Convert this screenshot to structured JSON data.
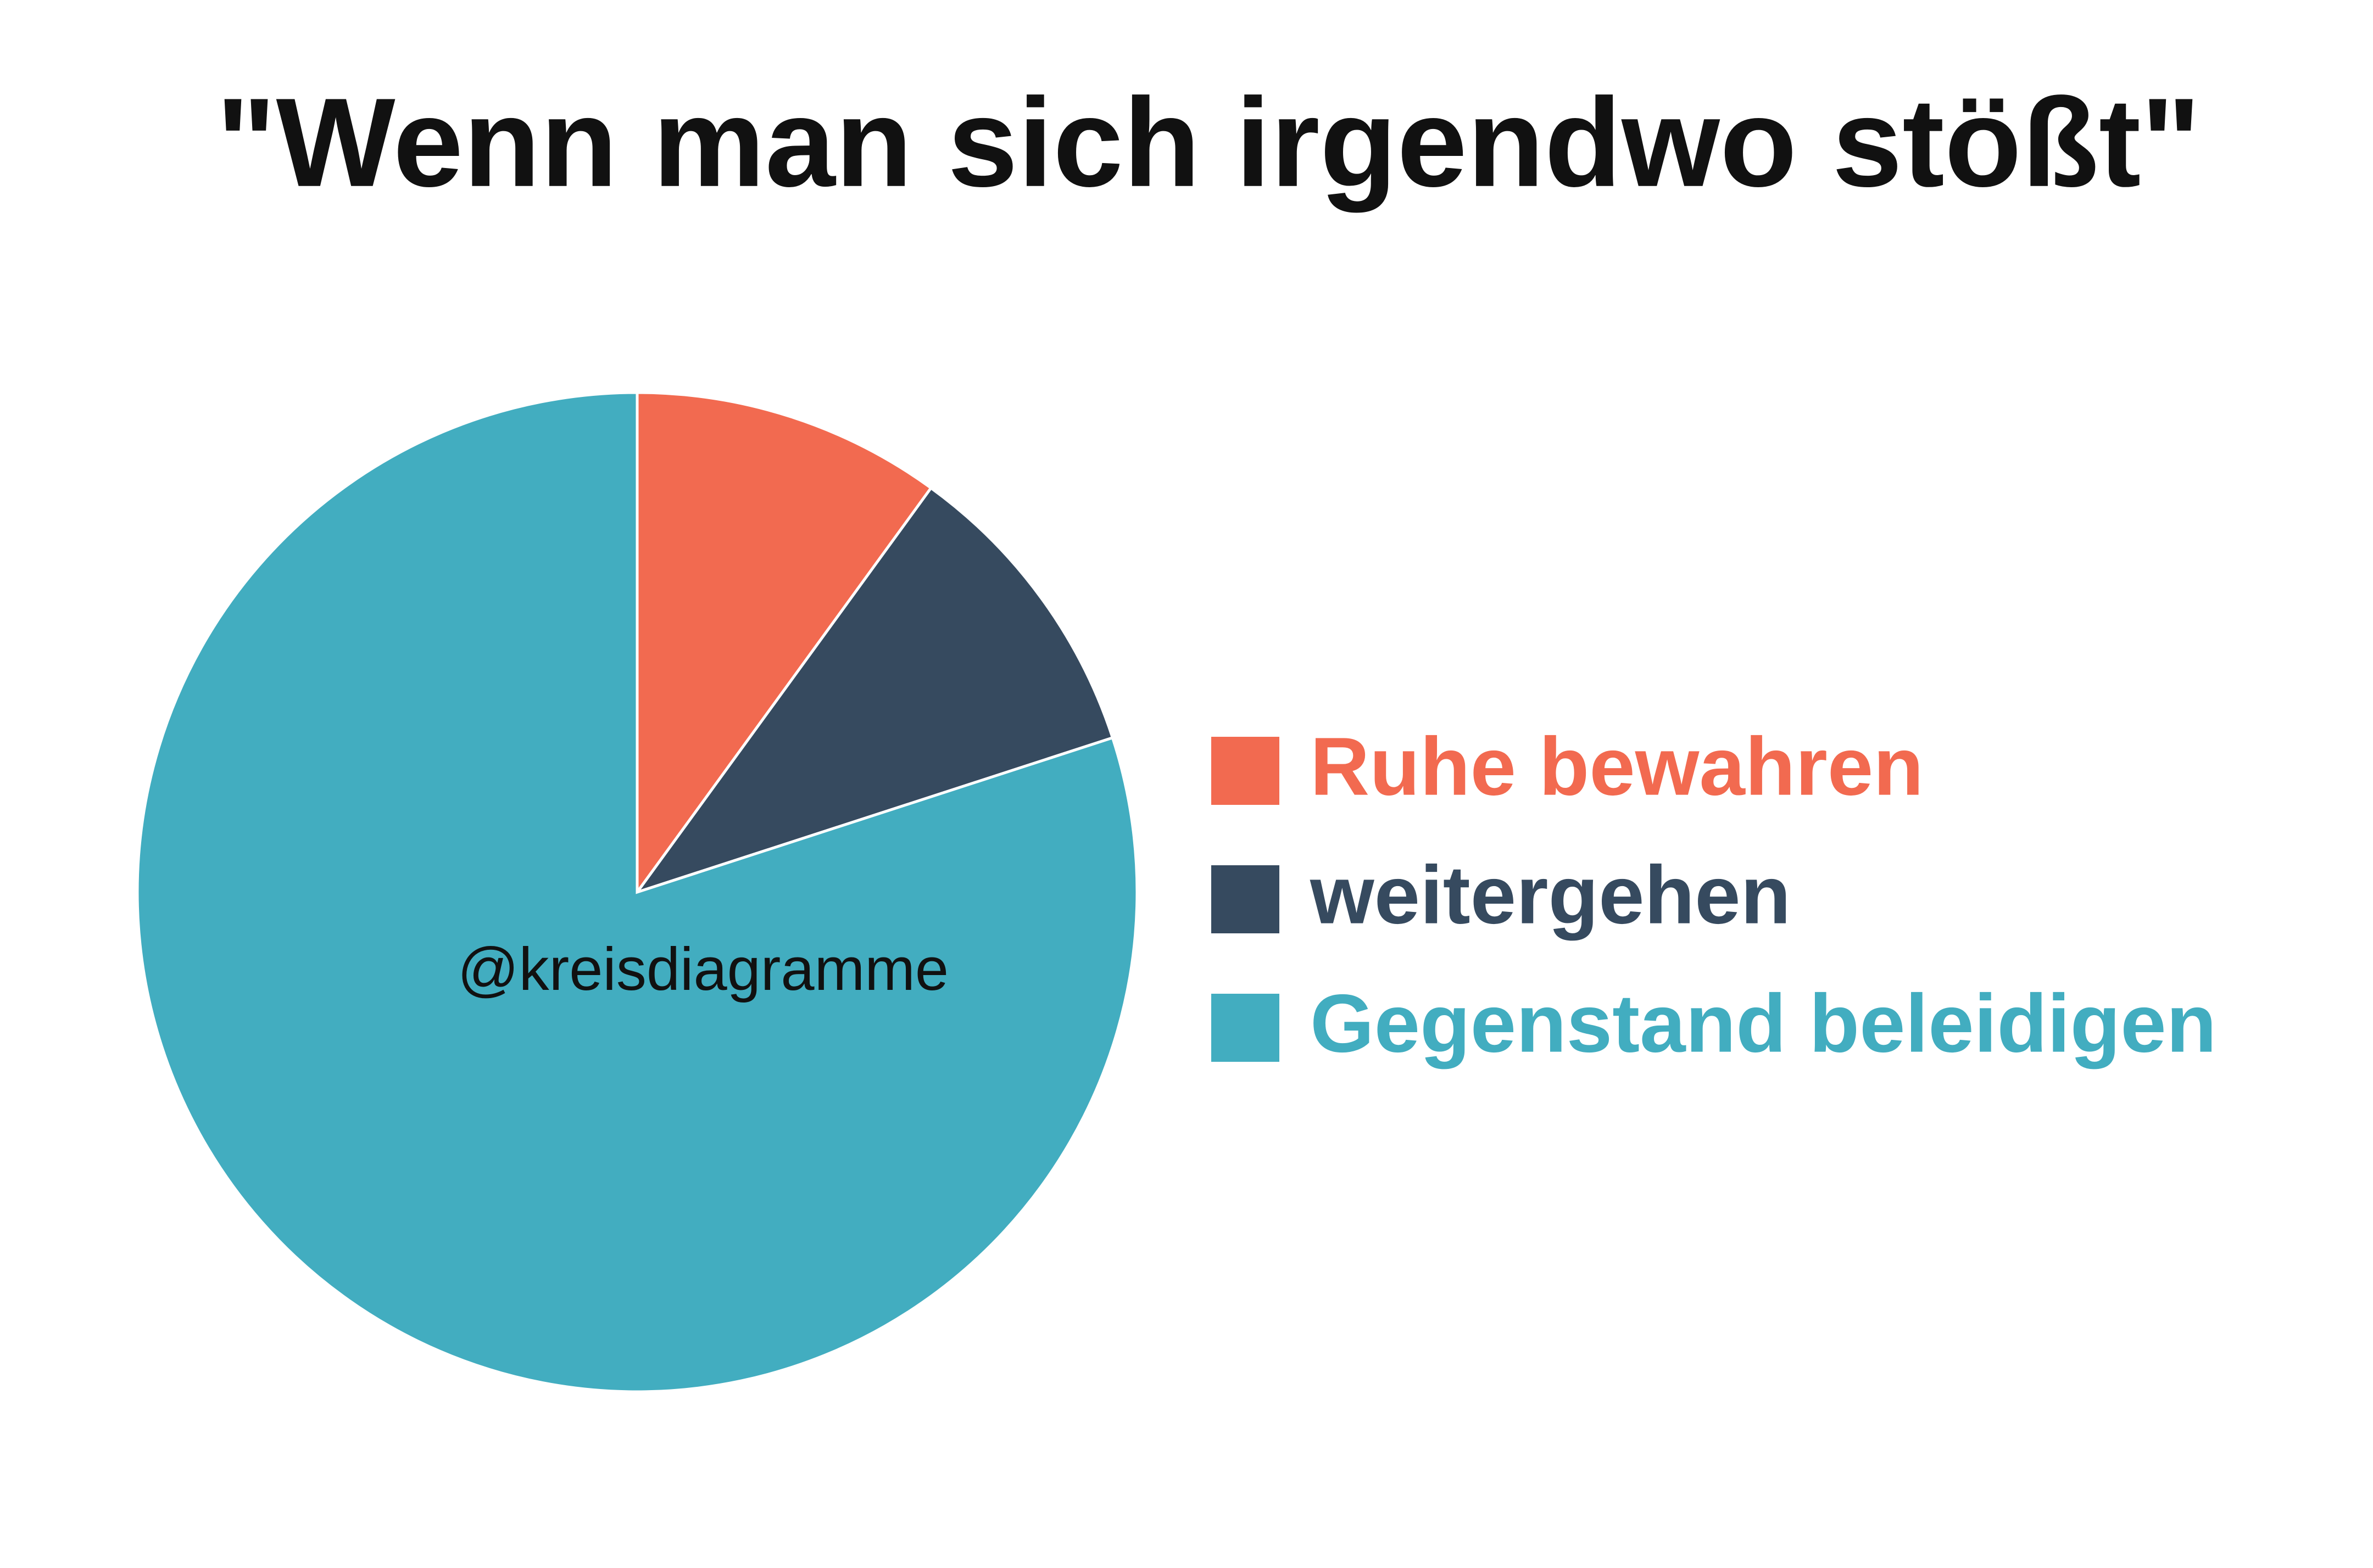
{
  "chart_data": {
    "type": "pie",
    "title": "\"Wenn man sich irgendwo stößt\"",
    "categories": [
      "Ruhe bewahren",
      "weitergehen",
      "Gegenstand beleidigen"
    ],
    "values": [
      10,
      10,
      80
    ],
    "colors": [
      "#f26a50",
      "#364a5f",
      "#42adc0"
    ],
    "annotation": "@kreisdiagramme",
    "legend": "right"
  }
}
